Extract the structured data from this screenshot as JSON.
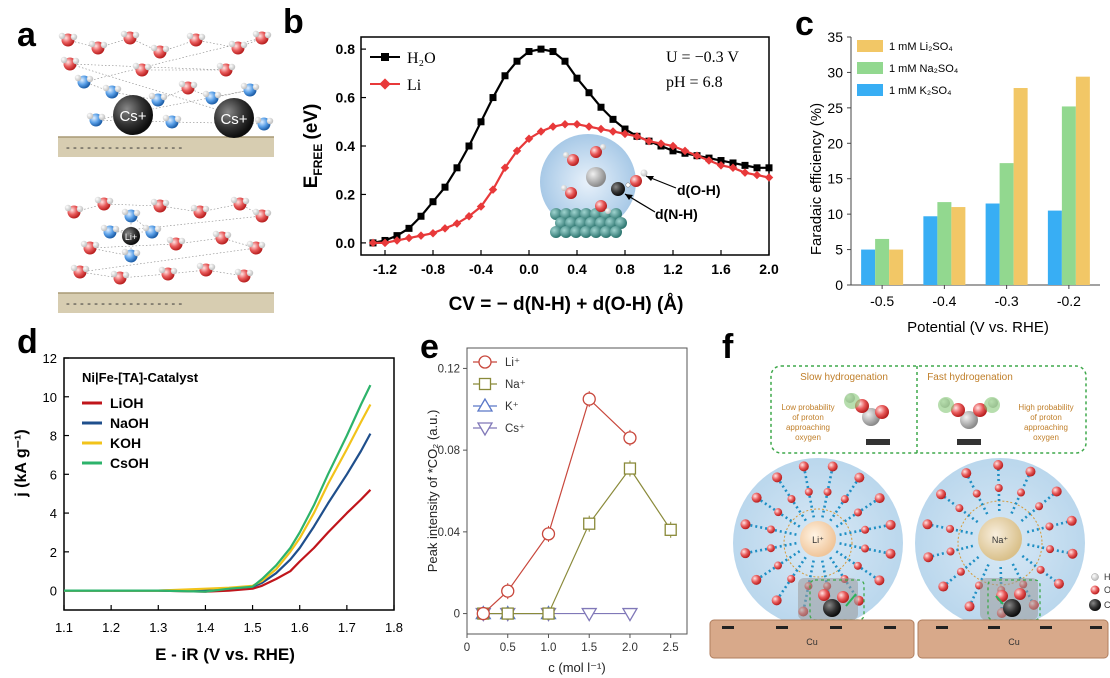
{
  "panel_labels": [
    "a",
    "b",
    "c",
    "d",
    "e",
    "f"
  ],
  "panel_a": {
    "ion_top": "Cs+",
    "ion_bottom": "Li+"
  },
  "colors": {
    "b_h2o": "#000000",
    "b_li": "#e8393a",
    "c_li2so4": "#f2c766",
    "c_na2so4": "#92d88f",
    "c_k2so4": "#38aef4",
    "d_lioh": "#c0151b",
    "d_naoh": "#1f4f8c",
    "d_koh": "#f2c31a",
    "d_csoh": "#2db36b",
    "e_li": "#c8473c",
    "e_na": "#8a8a3a",
    "e_k": "#5a78c8",
    "e_cs": "#8078b8"
  },
  "chart_data": [
    {
      "panel": "b",
      "type": "line",
      "ylabel": "E",
      "ylabel_sub": "FREE",
      "ylabel_unit": "(eV)",
      "xlabel": "CV = − d(N-H) + d(O-H) (Å)",
      "xlim": [
        -1.4,
        2.0
      ],
      "ylim": [
        -0.05,
        0.85
      ],
      "xticks": [
        "-1.2",
        "-0.8",
        "-0.4",
        "0.0",
        "0.4",
        "0.8",
        "1.2",
        "1.6",
        "2.0"
      ],
      "yticks": [
        "0.0",
        "0.2",
        "0.4",
        "0.6",
        "0.8"
      ],
      "annotations": [
        "U = −0.3 V",
        "pH = 6.8"
      ],
      "inset_labels": [
        "d(O-H)",
        "d(N-H)"
      ],
      "series": [
        {
          "name": "H₂O",
          "x": [
            -1.3,
            -1.2,
            -1.1,
            -1.0,
            -0.9,
            -0.8,
            -0.7,
            -0.6,
            -0.5,
            -0.4,
            -0.3,
            -0.2,
            -0.1,
            0.0,
            0.1,
            0.2,
            0.3,
            0.4,
            0.5,
            0.6,
            0.7,
            0.8,
            0.9,
            1.0,
            1.1,
            1.2,
            1.3,
            1.4,
            1.5,
            1.6,
            1.7,
            1.8,
            1.9,
            2.0
          ],
          "y": [
            0.0,
            0.01,
            0.03,
            0.06,
            0.11,
            0.17,
            0.23,
            0.31,
            0.4,
            0.5,
            0.6,
            0.69,
            0.75,
            0.79,
            0.8,
            0.79,
            0.75,
            0.68,
            0.62,
            0.56,
            0.51,
            0.47,
            0.44,
            0.42,
            0.4,
            0.38,
            0.37,
            0.36,
            0.35,
            0.34,
            0.33,
            0.32,
            0.31,
            0.31
          ]
        },
        {
          "name": "Li",
          "x": [
            -1.3,
            -1.2,
            -1.1,
            -1.0,
            -0.9,
            -0.8,
            -0.7,
            -0.6,
            -0.5,
            -0.4,
            -0.3,
            -0.2,
            -0.1,
            0.0,
            0.1,
            0.2,
            0.3,
            0.4,
            0.5,
            0.6,
            0.7,
            0.8,
            0.9,
            1.0,
            1.1,
            1.2,
            1.3,
            1.4,
            1.5,
            1.6,
            1.7,
            1.8,
            1.9,
            2.0
          ],
          "y": [
            0.0,
            0.0,
            0.01,
            0.02,
            0.03,
            0.04,
            0.06,
            0.08,
            0.11,
            0.15,
            0.22,
            0.31,
            0.38,
            0.43,
            0.46,
            0.48,
            0.49,
            0.49,
            0.48,
            0.47,
            0.46,
            0.45,
            0.44,
            0.42,
            0.41,
            0.4,
            0.38,
            0.36,
            0.34,
            0.32,
            0.31,
            0.29,
            0.28,
            0.27
          ]
        }
      ]
    },
    {
      "panel": "c",
      "type": "bar",
      "ylabel": "Faradaic efficiency (%)",
      "xlabel": "Potential (V vs. RHE)",
      "ylim": [
        0,
        35
      ],
      "yticks": [
        "0",
        "5",
        "10",
        "15",
        "20",
        "25",
        "30",
        "35"
      ],
      "categories": [
        "-0.5",
        "-0.4",
        "-0.3",
        "-0.2"
      ],
      "series": [
        {
          "name": "1 mM K₂SO₄",
          "values": [
            5.0,
            9.7,
            11.5,
            10.5
          ]
        },
        {
          "name": "1 mM Na₂SO₄",
          "values": [
            6.5,
            11.7,
            17.2,
            25.2
          ]
        },
        {
          "name": "1 mM Li₂SO₄",
          "values": [
            5.0,
            11.0,
            27.8,
            29.4
          ]
        }
      ],
      "legend_order": [
        "1 mM Li₂SO₄",
        "1 mM Na₂SO₄",
        "1 mM K₂SO₄"
      ]
    },
    {
      "panel": "d",
      "type": "line",
      "title": "Ni|Fe-[TA]-Catalyst",
      "ylabel": "j (kA g⁻¹)",
      "xlabel": "E - iR (V vs. RHE)",
      "xlim": [
        1.1,
        1.8
      ],
      "ylim": [
        -1,
        12
      ],
      "xticks": [
        "1.1",
        "1.2",
        "1.3",
        "1.4",
        "1.5",
        "1.6",
        "1.7",
        "1.8"
      ],
      "yticks": [
        "0",
        "2",
        "4",
        "6",
        "8",
        "10",
        "12"
      ],
      "series": [
        {
          "name": "LiOH",
          "x": [
            1.1,
            1.3,
            1.4,
            1.45,
            1.5,
            1.52,
            1.55,
            1.58,
            1.6,
            1.63,
            1.66,
            1.7,
            1.73,
            1.75
          ],
          "y": [
            0,
            0,
            -0.05,
            0,
            0.1,
            0.25,
            0.6,
            1.0,
            1.5,
            2.2,
            3.0,
            4.0,
            4.7,
            5.2
          ]
        },
        {
          "name": "NaOH",
          "x": [
            1.1,
            1.3,
            1.4,
            1.45,
            1.5,
            1.52,
            1.55,
            1.58,
            1.6,
            1.63,
            1.66,
            1.7,
            1.73,
            1.75
          ],
          "y": [
            0,
            0,
            0.05,
            0.1,
            0.2,
            0.4,
            0.9,
            1.6,
            2.2,
            3.3,
            4.5,
            6.0,
            7.2,
            8.1
          ]
        },
        {
          "name": "KOH",
          "x": [
            1.1,
            1.3,
            1.4,
            1.45,
            1.5,
            1.52,
            1.55,
            1.58,
            1.6,
            1.63,
            1.66,
            1.7,
            1.73,
            1.75
          ],
          "y": [
            0,
            0,
            0.1,
            0.15,
            0.25,
            0.5,
            1.1,
            2.0,
            2.7,
            4.0,
            5.5,
            7.3,
            8.7,
            9.6
          ]
        },
        {
          "name": "CsOH",
          "x": [
            1.1,
            1.3,
            1.4,
            1.45,
            1.5,
            1.52,
            1.55,
            1.58,
            1.6,
            1.63,
            1.66,
            1.7,
            1.73,
            1.75
          ],
          "y": [
            0,
            0,
            -0.05,
            0.1,
            0.2,
            0.6,
            1.3,
            2.2,
            3.0,
            4.4,
            6.0,
            8.0,
            9.6,
            10.6
          ]
        }
      ]
    },
    {
      "panel": "e",
      "type": "line",
      "ylabel": "Peak intensity of *CO₂ (a.u.)",
      "xlabel": "c (mol l⁻¹)",
      "xlim": [
        0,
        2.7
      ],
      "ylim": [
        -0.01,
        0.13
      ],
      "xticks": [
        "0",
        "0.5",
        "1.0",
        "1.5",
        "2.0",
        "2.5"
      ],
      "yticks": [
        "0",
        "0.04",
        "0.08",
        "0.12"
      ],
      "series": [
        {
          "name": "Li⁺",
          "x": [
            0.2,
            0.5,
            1.0,
            1.5,
            2.0
          ],
          "y": [
            0.0,
            0.011,
            0.039,
            0.105,
            0.086
          ]
        },
        {
          "name": "Na⁺",
          "x": [
            0.2,
            0.5,
            1.0,
            1.5,
            2.0,
            2.5
          ],
          "y": [
            0.0,
            0.0,
            0.0,
            0.044,
            0.071,
            0.041
          ]
        },
        {
          "name": "K⁺",
          "x": [
            0.2,
            0.5,
            1.0
          ],
          "y": [
            0.0,
            0.0,
            0.0
          ]
        },
        {
          "name": "Cs⁺",
          "x": [
            0.2,
            0.5,
            1.0,
            1.5,
            2.0
          ],
          "y": [
            0.0,
            0.0,
            0.0,
            0.0,
            0.0
          ]
        }
      ]
    }
  ],
  "panel_f": {
    "box_left_title": "Slow hydrogenation",
    "box_left_text": [
      "Low probability",
      "of proton",
      "approaching",
      "oxygen"
    ],
    "box_right_title": "Fast hydrogenation",
    "box_right_text": [
      "High probability",
      "of proton",
      "approaching",
      "oxygen"
    ],
    "ion_left": "Li⁺",
    "ion_right": "Na⁺",
    "substrate": "Cu",
    "legend_partial": [
      "H",
      "O",
      "C"
    ]
  }
}
